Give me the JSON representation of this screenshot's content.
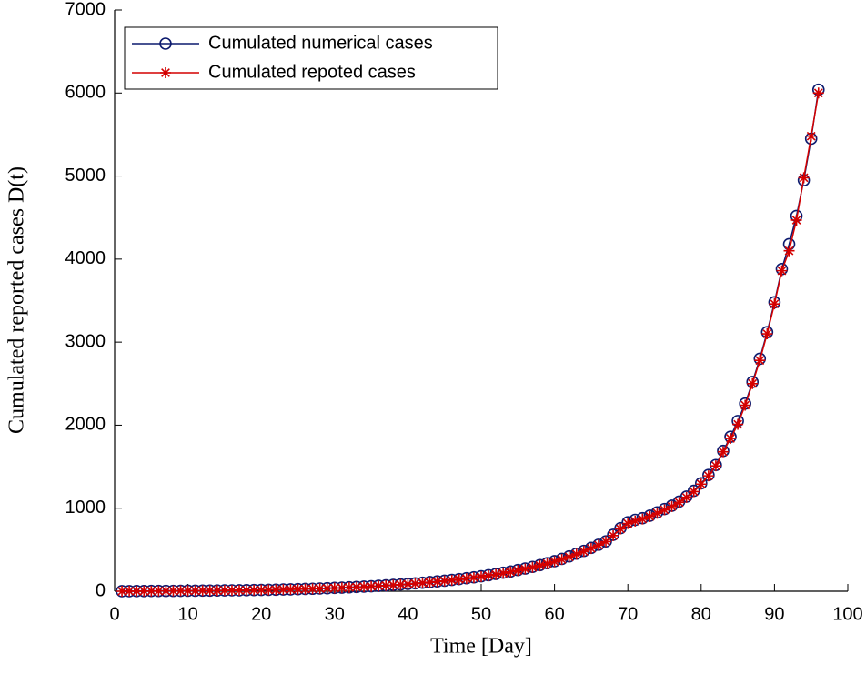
{
  "chart_data": {
    "type": "line",
    "xlabel": "Time [Day]",
    "ylabel": "Cumulated reported cases D(t)",
    "xlim": [
      0,
      100
    ],
    "xticks": [
      0,
      10,
      20,
      30,
      40,
      50,
      60,
      70,
      80,
      90,
      100
    ],
    "ylim": [
      0,
      7000
    ],
    "yticks": [
      0,
      1000,
      2000,
      3000,
      4000,
      5000,
      6000,
      7000
    ],
    "legend": "upper left",
    "x": [
      1,
      2,
      3,
      4,
      5,
      6,
      7,
      8,
      9,
      10,
      11,
      12,
      13,
      14,
      15,
      16,
      17,
      18,
      19,
      20,
      21,
      22,
      23,
      24,
      25,
      26,
      27,
      28,
      29,
      30,
      31,
      32,
      33,
      34,
      35,
      36,
      37,
      38,
      39,
      40,
      41,
      42,
      43,
      44,
      45,
      46,
      47,
      48,
      49,
      50,
      51,
      52,
      53,
      54,
      55,
      56,
      57,
      58,
      59,
      60,
      61,
      62,
      63,
      64,
      65,
      66,
      67,
      68,
      69,
      70,
      71,
      72,
      73,
      74,
      75,
      76,
      77,
      78,
      79,
      80,
      81,
      82,
      83,
      84,
      85,
      86,
      87,
      88,
      89,
      90,
      91,
      92,
      93,
      94,
      95,
      96
    ],
    "series": [
      {
        "name": "Cumulated numerical cases",
        "color": "#0c1a6e",
        "marker": "circle",
        "values": [
          1,
          1,
          2,
          2,
          3,
          3,
          4,
          4,
          5,
          6,
          6,
          7,
          8,
          9,
          10,
          11,
          12,
          13,
          14,
          16,
          17,
          19,
          21,
          23,
          25,
          28,
          30,
          33,
          36,
          40,
          43,
          47,
          51,
          55,
          60,
          65,
          70,
          76,
          82,
          88,
          95,
          102,
          110,
          118,
          127,
          136,
          146,
          157,
          168,
          180,
          193,
          207,
          222,
          238,
          255,
          273,
          293,
          314,
          337,
          362,
          390,
          420,
          452,
          486,
          522,
          560,
          600,
          680,
          760,
          830,
          860,
          880,
          910,
          950,
          990,
          1030,
          1080,
          1140,
          1210,
          1300,
          1400,
          1520,
          1690,
          1860,
          2050,
          2260,
          2520,
          2800,
          3120,
          3480,
          3880,
          4180,
          4520,
          4950,
          5450,
          6040
        ]
      },
      {
        "name": "Cumulated repoted cases",
        "color": "#d40000",
        "marker": "star",
        "values": [
          0,
          1,
          1,
          2,
          2,
          3,
          3,
          4,
          5,
          5,
          6,
          7,
          7,
          8,
          9,
          10,
          11,
          12,
          14,
          15,
          16,
          18,
          20,
          22,
          24,
          26,
          29,
          32,
          35,
          38,
          41,
          45,
          49,
          53,
          58,
          63,
          68,
          73,
          79,
          85,
          92,
          99,
          107,
          115,
          123,
          132,
          142,
          152,
          163,
          175,
          188,
          202,
          217,
          233,
          250,
          268,
          288,
          309,
          332,
          357,
          384,
          414,
          446,
          480,
          516,
          555,
          598,
          670,
          750,
          815,
          845,
          870,
          900,
          940,
          980,
          1020,
          1070,
          1130,
          1200,
          1290,
          1390,
          1510,
          1680,
          1840,
          2010,
          2240,
          2500,
          2780,
          3100,
          3460,
          3860,
          4100,
          4470,
          4980,
          5480,
          6000
        ]
      }
    ]
  }
}
